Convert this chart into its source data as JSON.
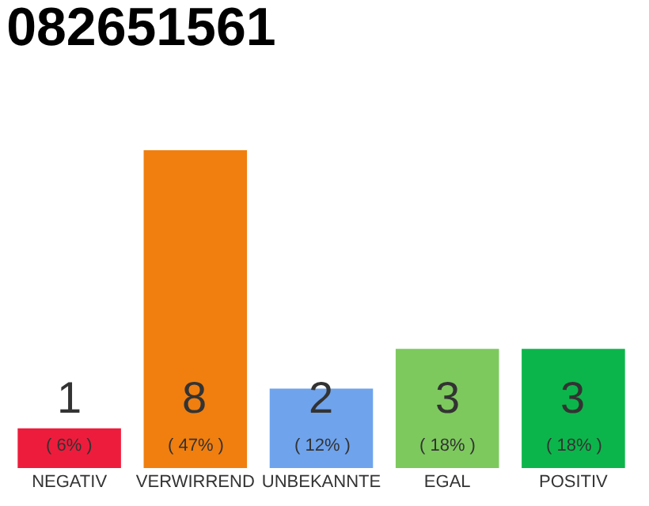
{
  "chart_data": {
    "type": "bar",
    "title": "082651561",
    "categories": [
      "NEGATIV",
      "VERWIRREND",
      "UNBEKANNTE",
      "EGAL",
      "POSITIV"
    ],
    "values": [
      1,
      8,
      2,
      3,
      3
    ],
    "colors": [
      "#ee1c3c",
      "#f07f0f",
      "#6fa3ec",
      "#7dc95e",
      "#0cb54b"
    ],
    "data_labels": true,
    "annotations": [
      {
        "text": "( 6% )",
        "x": "NEGATIV",
        "y": 0
      },
      {
        "text": "( 47% )",
        "x": "VERWIRREND",
        "y": 0
      },
      {
        "text": "( 12% )",
        "x": "UNBEKANNTE",
        "y": 0
      },
      {
        "text": "( 18% )",
        "x": "EGAL",
        "y": 0
      },
      {
        "text": "( 18% )",
        "x": "POSITIV",
        "y": 0
      }
    ],
    "tick_labels": "x"
  }
}
